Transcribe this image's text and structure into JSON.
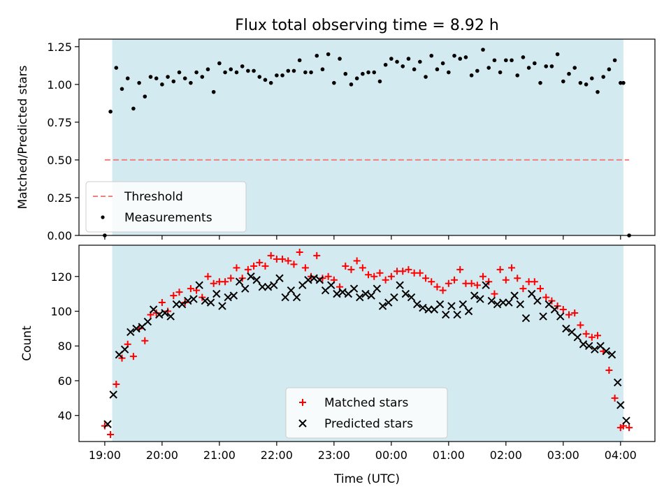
{
  "title": "Flux total observing time = 8.92 h",
  "chart_data": [
    {
      "type": "scatter",
      "ylabel": "Matched/Predicted stars",
      "xlabel": "",
      "ylim": [
        0,
        1.3
      ],
      "yticks": [
        "0.00",
        "0.25",
        "0.50",
        "0.75",
        "1.00",
        "1.25"
      ],
      "grid": false,
      "legend_position": "lower-left",
      "shaded_range_hours": [
        19.13,
        28.05
      ],
      "threshold": {
        "name": "Threshold",
        "value": 0.5,
        "x_range_hours": [
          19.0,
          28.15
        ],
        "color": "#f08080"
      },
      "series": [
        {
          "name": "Measurements",
          "color": "#000000",
          "x_hours": [
            19.0,
            19.1,
            19.2,
            19.3,
            19.4,
            19.5,
            19.6,
            19.7,
            19.8,
            19.9,
            20.0,
            20.1,
            20.2,
            20.3,
            20.4,
            20.5,
            20.6,
            20.7,
            20.8,
            20.9,
            21.0,
            21.1,
            21.2,
            21.3,
            21.4,
            21.5,
            21.6,
            21.7,
            21.8,
            21.9,
            22.0,
            22.1,
            22.2,
            22.3,
            22.4,
            22.5,
            22.6,
            22.7,
            22.8,
            22.9,
            23.0,
            23.1,
            23.2,
            23.3,
            23.4,
            23.5,
            23.6,
            23.7,
            23.8,
            23.9,
            24.0,
            24.1,
            24.2,
            24.3,
            24.4,
            24.5,
            24.6,
            24.7,
            24.8,
            24.9,
            25.0,
            25.1,
            25.2,
            25.3,
            25.4,
            25.5,
            25.6,
            25.7,
            25.8,
            25.9,
            26.0,
            26.1,
            26.2,
            26.3,
            26.4,
            26.5,
            26.6,
            26.7,
            26.8,
            26.9,
            27.0,
            27.1,
            27.2,
            27.3,
            27.4,
            27.5,
            27.6,
            27.7,
            27.8,
            27.9,
            28.0,
            28.05,
            28.15
          ],
          "y": [
            0.0,
            0.82,
            1.11,
            0.97,
            1.04,
            0.84,
            1.01,
            0.92,
            1.05,
            1.04,
            1.0,
            1.05,
            1.02,
            1.08,
            1.04,
            1.01,
            1.08,
            1.05,
            1.1,
            0.95,
            1.14,
            1.08,
            1.1,
            1.08,
            1.12,
            1.09,
            1.09,
            1.05,
            1.03,
            1.01,
            1.06,
            1.06,
            1.09,
            1.09,
            1.16,
            1.08,
            1.08,
            1.19,
            1.1,
            1.2,
            1.01,
            1.17,
            1.07,
            1.0,
            1.04,
            1.07,
            1.08,
            1.08,
            1.02,
            1.13,
            1.17,
            1.15,
            1.12,
            1.17,
            1.1,
            1.15,
            1.05,
            1.19,
            1.1,
            1.14,
            1.08,
            1.19,
            1.17,
            1.18,
            1.06,
            1.09,
            1.23,
            1.11,
            1.16,
            1.08,
            1.16,
            1.16,
            1.06,
            1.18,
            1.11,
            1.14,
            1.01,
            1.12,
            1.12,
            1.2,
            1.02,
            1.07,
            1.11,
            1.01,
            1.0,
            1.04,
            0.95,
            1.05,
            1.1,
            1.16,
            1.01,
            1.01,
            0.0
          ]
        }
      ]
    },
    {
      "type": "scatter",
      "ylabel": "Count",
      "xlabel": "Time (UTC)",
      "ylim": [
        25,
        138
      ],
      "yticks": [
        "40",
        "60",
        "80",
        "100",
        "120"
      ],
      "xticks": [
        "19:00",
        "20:00",
        "21:00",
        "22:00",
        "23:00",
        "00:00",
        "01:00",
        "02:00",
        "03:00",
        "04:00"
      ],
      "xlim_hours": [
        18.55,
        28.6
      ],
      "grid": false,
      "legend_position": "lower-center",
      "shaded_range_hours": [
        19.13,
        28.05
      ],
      "series": [
        {
          "name": "Matched stars",
          "marker": "+",
          "color": "#ff0000",
          "x_hours": [
            19.0,
            19.1,
            19.2,
            19.3,
            19.4,
            19.5,
            19.6,
            19.7,
            19.8,
            19.9,
            20.0,
            20.1,
            20.2,
            20.3,
            20.4,
            20.5,
            20.6,
            20.7,
            20.8,
            20.9,
            21.0,
            21.1,
            21.2,
            21.3,
            21.4,
            21.5,
            21.6,
            21.7,
            21.8,
            21.9,
            22.0,
            22.1,
            22.2,
            22.3,
            22.4,
            22.5,
            22.6,
            22.7,
            22.8,
            22.9,
            23.0,
            23.1,
            23.2,
            23.3,
            23.4,
            23.5,
            23.6,
            23.7,
            23.8,
            23.9,
            24.0,
            24.1,
            24.2,
            24.3,
            24.4,
            24.5,
            24.6,
            24.7,
            24.8,
            24.9,
            25.0,
            25.1,
            25.2,
            25.3,
            25.4,
            25.5,
            25.6,
            25.7,
            25.8,
            25.9,
            26.0,
            26.1,
            26.2,
            26.3,
            26.4,
            26.5,
            26.6,
            26.7,
            26.8,
            26.9,
            27.0,
            27.1,
            27.2,
            27.3,
            27.4,
            27.5,
            27.6,
            27.7,
            27.8,
            27.9,
            28.0,
            28.05,
            28.15
          ],
          "y": [
            34,
            29,
            58,
            73,
            81,
            74,
            90,
            83,
            98,
            99,
            105,
            100,
            109,
            111,
            105,
            113,
            112,
            108,
            120,
            116,
            117,
            117,
            119,
            125,
            119,
            124,
            126,
            128,
            126,
            132,
            130,
            130,
            129,
            127,
            134,
            125,
            120,
            132,
            119,
            120,
            118,
            114,
            126,
            124,
            129,
            125,
            121,
            120,
            122,
            118,
            120,
            123,
            123,
            124,
            122,
            122,
            119,
            117,
            114,
            112,
            116,
            118,
            124,
            116,
            116,
            115,
            120,
            117,
            110,
            124,
            118,
            125,
            119,
            113,
            117,
            117,
            113,
            108,
            106,
            103,
            101,
            98,
            99,
            92,
            87,
            85,
            86,
            77,
            66,
            50,
            33,
            34,
            33
          ]
        },
        {
          "name": "Predicted stars",
          "marker": "x",
          "color": "#000000",
          "x_hours": [
            19.05,
            19.15,
            19.25,
            19.35,
            19.45,
            19.55,
            19.65,
            19.75,
            19.85,
            19.95,
            20.05,
            20.15,
            20.25,
            20.35,
            20.45,
            20.55,
            20.65,
            20.75,
            20.85,
            20.95,
            21.05,
            21.15,
            21.25,
            21.35,
            21.45,
            21.55,
            21.65,
            21.75,
            21.85,
            21.95,
            22.05,
            22.15,
            22.25,
            22.35,
            22.45,
            22.55,
            22.65,
            22.75,
            22.85,
            22.95,
            23.05,
            23.15,
            23.25,
            23.35,
            23.45,
            23.55,
            23.65,
            23.75,
            23.85,
            23.95,
            24.05,
            24.15,
            24.25,
            24.35,
            24.45,
            24.55,
            24.65,
            24.75,
            24.85,
            24.95,
            25.05,
            25.15,
            25.25,
            25.35,
            25.45,
            25.55,
            25.65,
            25.75,
            25.85,
            25.95,
            26.05,
            26.15,
            26.25,
            26.35,
            26.45,
            26.55,
            26.65,
            26.75,
            26.85,
            26.95,
            27.05,
            27.15,
            27.25,
            27.35,
            27.45,
            27.55,
            27.65,
            27.75,
            27.85,
            27.95,
            28.0,
            28.1
          ],
          "y": [
            35,
            52,
            75,
            78,
            88,
            90,
            91,
            94,
            101,
            98,
            99,
            97,
            104,
            104,
            106,
            107,
            115,
            106,
            105,
            110,
            103,
            108,
            109,
            117,
            113,
            120,
            118,
            114,
            114,
            115,
            119,
            108,
            112,
            108,
            115,
            118,
            119,
            118,
            112,
            115,
            110,
            111,
            110,
            113,
            108,
            110,
            109,
            113,
            103,
            105,
            108,
            115,
            110,
            108,
            104,
            102,
            101,
            101,
            104,
            98,
            103,
            98,
            104,
            100,
            109,
            107,
            115,
            106,
            104,
            105,
            105,
            109,
            104,
            96,
            110,
            106,
            97,
            104,
            101,
            97,
            90,
            88,
            85,
            81,
            80,
            78,
            80,
            77,
            75,
            59,
            46,
            37
          ]
        }
      ]
    }
  ],
  "legend_top": [
    {
      "label": "Threshold",
      "kind": "dashed-line",
      "color": "#f08080"
    },
    {
      "label": "Measurements",
      "kind": "dot",
      "color": "#000000"
    }
  ],
  "legend_bottom": [
    {
      "label": "Matched stars",
      "kind": "plus",
      "color": "#ff0000"
    },
    {
      "label": "Predicted stars",
      "kind": "cross",
      "color": "#000000"
    }
  ],
  "colors": {
    "shade": "#d4eaf1",
    "threshold": "#f08080",
    "matched": "#ff0000",
    "predicted": "#000000"
  }
}
